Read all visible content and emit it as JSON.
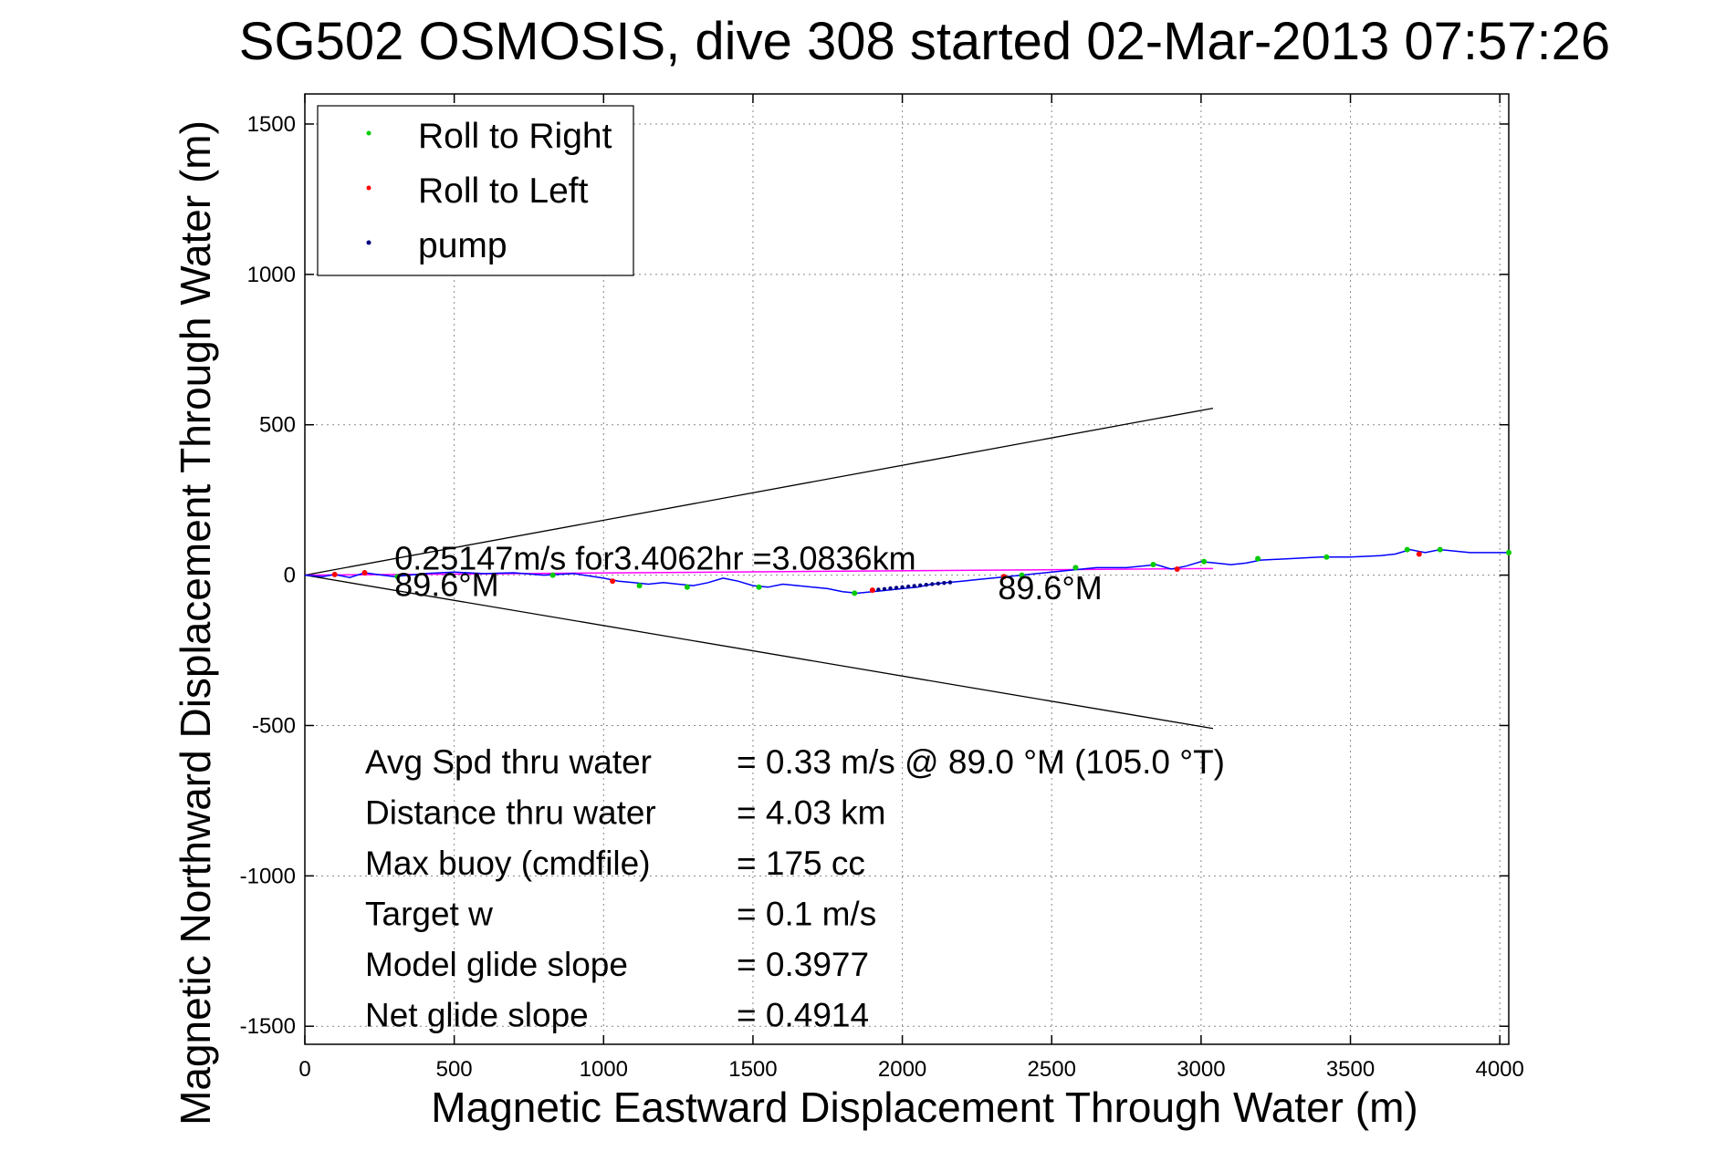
{
  "chart_data": {
    "type": "line",
    "title": "SG502 OSMOSIS, dive 308 started 02-Mar-2013 07:57:26",
    "xlabel": "Magnetic Eastward Displacement Through Water (m)",
    "ylabel": "Magnetic Northward Displacement Through Water (m)",
    "xlim": [
      0,
      4030
    ],
    "ylim": [
      -1560,
      1600
    ],
    "xticks": [
      0,
      500,
      1000,
      1500,
      2000,
      2500,
      3000,
      3500,
      4000
    ],
    "yticks": [
      -1500,
      -1000,
      -500,
      0,
      500,
      1000,
      1500
    ],
    "grid": true,
    "legend": {
      "position": "top-left",
      "entries": [
        {
          "label": "Roll to Right",
          "color": "#00cc00"
        },
        {
          "label": "Roll to Left",
          "color": "#ff0000"
        },
        {
          "label": "pump",
          "color": "#000080"
        }
      ]
    },
    "track": {
      "color": "#0000ff",
      "x": [
        0,
        60,
        100,
        150,
        200,
        260,
        300,
        400,
        500,
        600,
        700,
        800,
        900,
        1000,
        1050,
        1100,
        1150,
        1200,
        1250,
        1300,
        1350,
        1400,
        1450,
        1500,
        1550,
        1600,
        1650,
        1700,
        1750,
        1800,
        1850,
        1900,
        1950,
        2000,
        2050,
        2100,
        2150,
        2200,
        2250,
        2300,
        2350,
        2400,
        2450,
        2500,
        2550,
        2600,
        2650,
        2700,
        2750,
        2800,
        2850,
        2900,
        2950,
        3000,
        3050,
        3100,
        3150,
        3200,
        3300,
        3400,
        3500,
        3600,
        3650,
        3700,
        3750,
        3800,
        3850,
        3900,
        3950,
        4030
      ],
      "y": [
        0,
        -5,
        2,
        -8,
        8,
        0,
        -5,
        5,
        10,
        5,
        8,
        0,
        5,
        -10,
        -20,
        -25,
        -30,
        -25,
        -30,
        -35,
        -25,
        -10,
        -20,
        -35,
        -40,
        -30,
        -35,
        -40,
        -45,
        -55,
        -60,
        -55,
        -50,
        -45,
        -40,
        -30,
        -25,
        -20,
        -15,
        -10,
        -5,
        0,
        5,
        10,
        15,
        20,
        25,
        25,
        25,
        30,
        35,
        20,
        30,
        45,
        40,
        35,
        40,
        50,
        55,
        60,
        60,
        65,
        70,
        85,
        75,
        85,
        80,
        75,
        75,
        75
      ]
    },
    "roll_right": {
      "x": [
        310,
        830,
        1120,
        1280,
        1520,
        1840,
        2400,
        2580,
        2840,
        3010,
        3190,
        3420,
        3690,
        3800,
        4030
      ],
      "y": [
        -5,
        0,
        -35,
        -40,
        -40,
        -60,
        0,
        25,
        35,
        45,
        55,
        60,
        85,
        85,
        75
      ]
    },
    "roll_left": {
      "x": [
        100,
        200,
        1030,
        1900,
        2340,
        2920,
        3730
      ],
      "y": [
        2,
        8,
        -20,
        -50,
        -5,
        20,
        70
      ]
    },
    "pump": {
      "x": [
        1920,
        1940,
        1960,
        1980,
        2000,
        2020,
        2040,
        2060,
        2080,
        2100,
        2120,
        2140,
        2160
      ],
      "y": [
        -48,
        -46,
        -44,
        -42,
        -40,
        -38,
        -36,
        -34,
        -32,
        -30,
        -28,
        -26,
        -24
      ]
    },
    "mean_line": {
      "x": [
        0,
        3040
      ],
      "y": [
        0,
        22
      ],
      "color": "#ff00ff"
    },
    "cone_upper": {
      "x": [
        0,
        3040
      ],
      "y": [
        0,
        555
      ]
    },
    "cone_lower": {
      "x": [
        0,
        3040
      ],
      "y": [
        0,
        -510
      ]
    },
    "annotations": [
      {
        "text": "0.25147m/s for3.4062hr =3.0836km",
        "x": 300,
        "y": 18
      },
      {
        "text": "89.6°M",
        "x": 300,
        "y": -70
      },
      {
        "text": "89.6°M",
        "x": 2320,
        "y": -80
      }
    ],
    "stats": [
      {
        "label": "Avg Spd thru water",
        "value": "=  0.33 m/s @  89.0 °M (105.0 °T)"
      },
      {
        "label": "Distance thru water",
        "value": "=  4.03 km"
      },
      {
        "label": "Max buoy (cmdfile)",
        "value": "= 175 cc"
      },
      {
        "label": "Target w",
        "value": "= 0.1 m/s"
      },
      {
        "label": "Model glide slope",
        "value": "= 0.3977"
      },
      {
        "label": "Net glide slope",
        "value": "= 0.4914"
      }
    ]
  }
}
